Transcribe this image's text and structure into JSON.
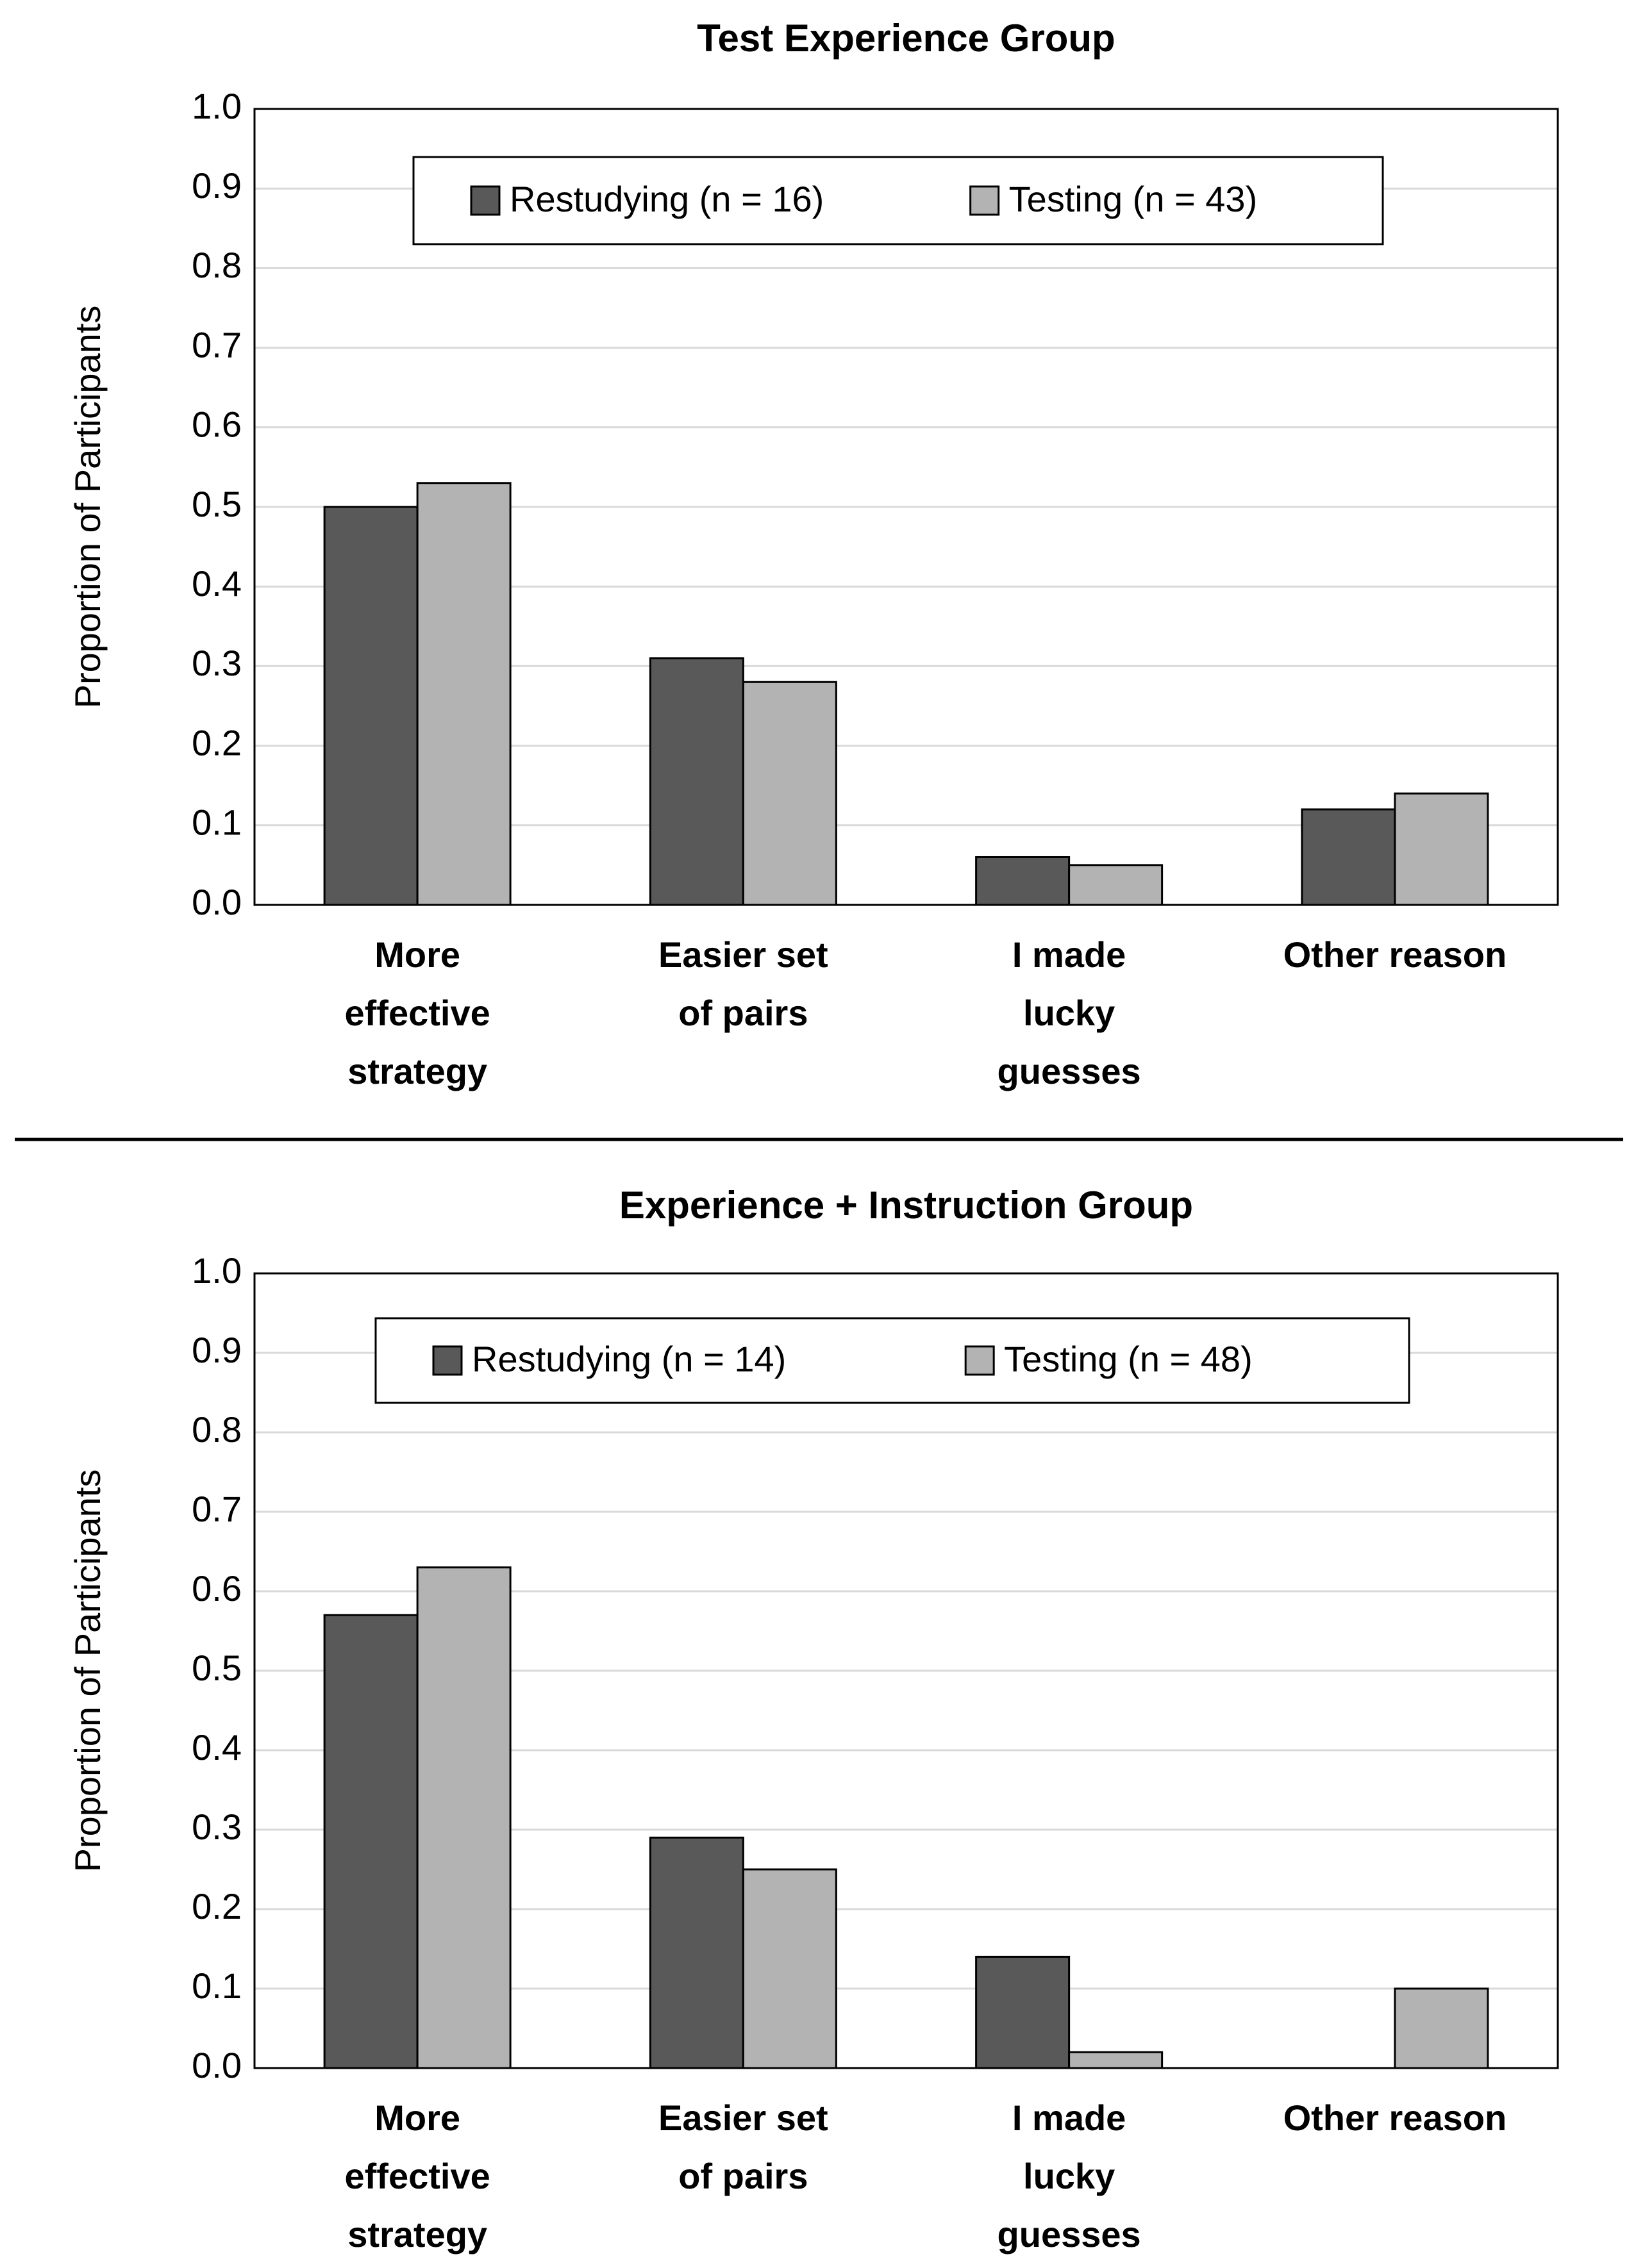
{
  "chart_data": [
    {
      "type": "bar",
      "title": "Test Experience Group",
      "y_label": "Proportion of Participants",
      "categories": [
        [
          "More",
          "effective",
          "strategy"
        ],
        [
          "Easier set",
          "of pairs"
        ],
        [
          "I made",
          "lucky",
          "guesses"
        ],
        [
          "Other reason"
        ]
      ],
      "series": [
        {
          "name": "Restudying (n = 16)",
          "color": "#595959",
          "values": [
            0.5,
            0.31,
            0.06,
            0.12
          ]
        },
        {
          "name": "Testing (n = 43)",
          "color": "#b3b3b3",
          "values": [
            0.53,
            0.28,
            0.05,
            0.14
          ]
        }
      ],
      "ylim": [
        0,
        1
      ],
      "yticks": [
        {
          "value": 0,
          "label": "0.0"
        },
        0.1,
        0.2,
        0.3,
        0.4,
        0.5,
        0.6,
        0.7,
        0.8,
        0.9,
        {
          "value": 1,
          "label": "1.0"
        }
      ],
      "grid": true,
      "legend": "top"
    },
    {
      "type": "bar",
      "title": "Experience + Instruction Group",
      "y_label": "Proportion of Participants",
      "categories": [
        [
          "More",
          "effective",
          "strategy"
        ],
        [
          "Easier set",
          "of pairs"
        ],
        [
          "I made",
          "lucky",
          "guesses"
        ],
        [
          "Other reason"
        ]
      ],
      "series": [
        {
          "name": "Restudying (n = 14)",
          "color": "#595959",
          "values": [
            0.57,
            0.29,
            0.14,
            0
          ]
        },
        {
          "name": "Testing (n = 48)",
          "color": "#b3b3b3",
          "values": [
            0.63,
            0.25,
            0.02,
            0.1
          ]
        }
      ],
      "ylim": [
        0,
        1
      ],
      "yticks": [
        {
          "value": 0,
          "label": "0.0"
        },
        0.1,
        0.2,
        0.3,
        0.4,
        0.5,
        0.6,
        0.7,
        0.8,
        0.9,
        {
          "value": 1,
          "label": "1.0"
        }
      ],
      "grid": true,
      "legend": "top"
    }
  ]
}
